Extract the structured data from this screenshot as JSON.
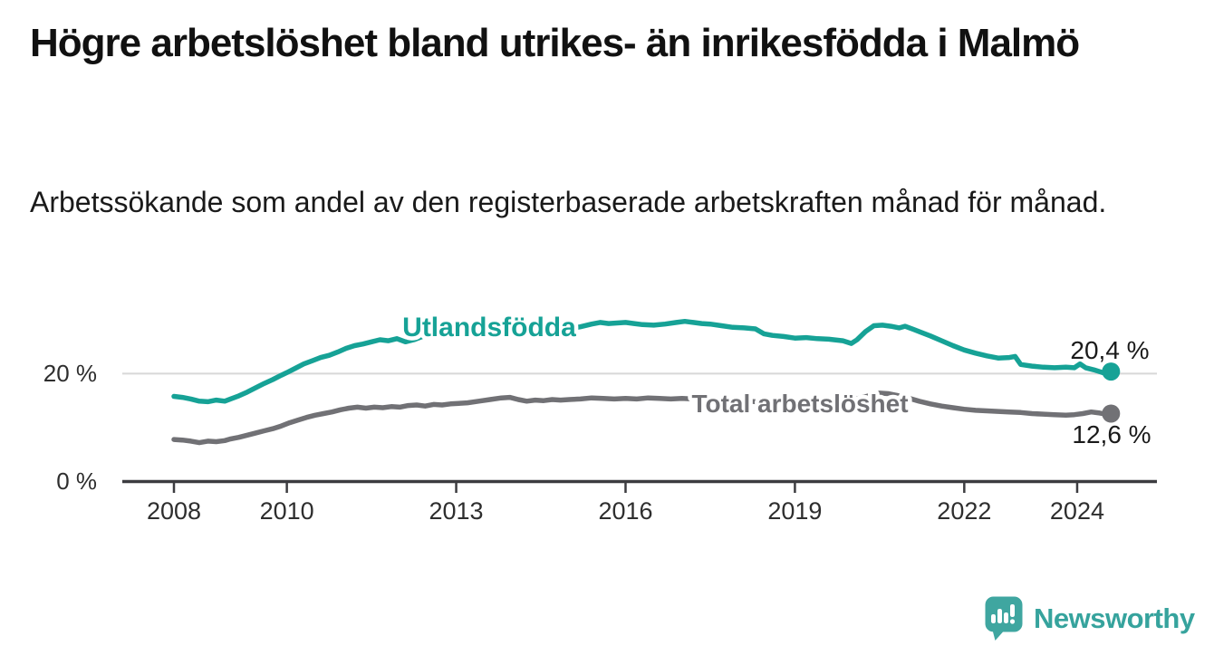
{
  "header": {
    "title": "Högre arbetslöshet bland utrikes- än inrikesfödda i Malmö",
    "subtitle": "Arbetssökande som andel av den registerbaserade arbetskraften månad för månad."
  },
  "chart_data": {
    "type": "line",
    "title": "Högre arbetslöshet bland utrikes- än inrikesfödda i Malmö",
    "xlabel": "",
    "ylabel": "",
    "unit": "%",
    "grid": "horizontal gridline at 20 % only",
    "legend_position": "inline labels on lines",
    "xlim": [
      2007.1,
      2025.4
    ],
    "ylim": [
      0,
      33.8
    ],
    "x_ticks": [
      2008,
      2010,
      2013,
      2016,
      2019,
      2022,
      2024
    ],
    "x_tick_labels": [
      "2008",
      "2010",
      "2013",
      "2016",
      "2019",
      "2022",
      "2024"
    ],
    "y_ticks": [
      {
        "value": 0,
        "label": "0 %"
      },
      {
        "value": 20,
        "label": "20 %"
      }
    ],
    "series": [
      {
        "name": "Utlandsfödda",
        "color": "#16a296",
        "end_value": 20.4,
        "end_label": "20,4 %",
        "points": [
          [
            2008.0,
            15.8
          ],
          [
            2008.15,
            15.6
          ],
          [
            2008.3,
            15.3
          ],
          [
            2008.45,
            14.9
          ],
          [
            2008.6,
            14.8
          ],
          [
            2008.75,
            15.1
          ],
          [
            2008.9,
            14.9
          ],
          [
            2009.0,
            15.3
          ],
          [
            2009.15,
            15.9
          ],
          [
            2009.3,
            16.6
          ],
          [
            2009.45,
            17.4
          ],
          [
            2009.6,
            18.2
          ],
          [
            2009.75,
            18.9
          ],
          [
            2009.9,
            19.7
          ],
          [
            2010.0,
            20.2
          ],
          [
            2010.15,
            21.0
          ],
          [
            2010.3,
            21.8
          ],
          [
            2010.45,
            22.4
          ],
          [
            2010.6,
            23.0
          ],
          [
            2010.75,
            23.4
          ],
          [
            2010.9,
            24.0
          ],
          [
            2011.05,
            24.7
          ],
          [
            2011.2,
            25.2
          ],
          [
            2011.35,
            25.5
          ],
          [
            2011.5,
            25.9
          ],
          [
            2011.65,
            26.3
          ],
          [
            2011.8,
            26.1
          ],
          [
            2011.95,
            26.5
          ],
          [
            2012.1,
            25.9
          ],
          [
            2012.25,
            26.3
          ],
          [
            2012.4,
            26.9
          ],
          [
            2012.55,
            27.2
          ],
          [
            2012.7,
            27.1
          ],
          [
            2012.85,
            26.8
          ],
          [
            2013.0,
            27.1
          ],
          [
            2013.2,
            27.3
          ],
          [
            2013.4,
            27.5
          ],
          [
            2013.6,
            27.7
          ],
          [
            2013.8,
            27.9
          ],
          [
            2014.0,
            28.0
          ],
          [
            2014.2,
            28.2
          ],
          [
            2014.4,
            28.5
          ],
          [
            2014.6,
            28.3
          ],
          [
            2014.8,
            28.4
          ],
          [
            2015.0,
            28.3
          ],
          [
            2015.2,
            28.7
          ],
          [
            2015.4,
            29.2
          ],
          [
            2015.55,
            29.5
          ],
          [
            2015.7,
            29.3
          ],
          [
            2015.85,
            29.4
          ],
          [
            2016.0,
            29.5
          ],
          [
            2016.15,
            29.3
          ],
          [
            2016.3,
            29.1
          ],
          [
            2016.5,
            29.0
          ],
          [
            2016.7,
            29.2
          ],
          [
            2016.9,
            29.5
          ],
          [
            2017.05,
            29.7
          ],
          [
            2017.2,
            29.5
          ],
          [
            2017.35,
            29.3
          ],
          [
            2017.5,
            29.2
          ],
          [
            2017.7,
            28.9
          ],
          [
            2017.9,
            28.6
          ],
          [
            2018.1,
            28.5
          ],
          [
            2018.3,
            28.3
          ],
          [
            2018.45,
            27.4
          ],
          [
            2018.6,
            27.1
          ],
          [
            2018.8,
            26.9
          ],
          [
            2019.0,
            26.6
          ],
          [
            2019.2,
            26.7
          ],
          [
            2019.4,
            26.5
          ],
          [
            2019.6,
            26.4
          ],
          [
            2019.85,
            26.1
          ],
          [
            2020.0,
            25.6
          ],
          [
            2020.1,
            26.3
          ],
          [
            2020.25,
            27.8
          ],
          [
            2020.4,
            28.9
          ],
          [
            2020.55,
            29.0
          ],
          [
            2020.7,
            28.8
          ],
          [
            2020.85,
            28.5
          ],
          [
            2020.95,
            28.8
          ],
          [
            2021.1,
            28.2
          ],
          [
            2021.25,
            27.6
          ],
          [
            2021.4,
            27.0
          ],
          [
            2021.6,
            26.1
          ],
          [
            2021.8,
            25.2
          ],
          [
            2022.0,
            24.4
          ],
          [
            2022.2,
            23.8
          ],
          [
            2022.4,
            23.3
          ],
          [
            2022.6,
            22.9
          ],
          [
            2022.8,
            23.0
          ],
          [
            2022.9,
            23.2
          ],
          [
            2023.0,
            21.7
          ],
          [
            2023.2,
            21.4
          ],
          [
            2023.4,
            21.2
          ],
          [
            2023.6,
            21.1
          ],
          [
            2023.8,
            21.2
          ],
          [
            2023.95,
            21.1
          ],
          [
            2024.05,
            21.8
          ],
          [
            2024.15,
            21.1
          ],
          [
            2024.3,
            20.7
          ],
          [
            2024.45,
            20.2
          ],
          [
            2024.55,
            20.0
          ],
          [
            2024.6,
            20.4
          ]
        ]
      },
      {
        "name": "Total arbetslöshet",
        "color": "#717175",
        "end_value": 12.6,
        "end_label": "12,6 %",
        "points": [
          [
            2008.0,
            7.8
          ],
          [
            2008.15,
            7.7
          ],
          [
            2008.3,
            7.5
          ],
          [
            2008.45,
            7.2
          ],
          [
            2008.6,
            7.5
          ],
          [
            2008.75,
            7.4
          ],
          [
            2008.9,
            7.6
          ],
          [
            2009.0,
            7.9
          ],
          [
            2009.15,
            8.2
          ],
          [
            2009.3,
            8.6
          ],
          [
            2009.45,
            9.0
          ],
          [
            2009.6,
            9.4
          ],
          [
            2009.75,
            9.8
          ],
          [
            2009.9,
            10.3
          ],
          [
            2010.05,
            10.9
          ],
          [
            2010.2,
            11.4
          ],
          [
            2010.35,
            11.9
          ],
          [
            2010.5,
            12.3
          ],
          [
            2010.65,
            12.6
          ],
          [
            2010.8,
            12.9
          ],
          [
            2010.95,
            13.3
          ],
          [
            2011.1,
            13.6
          ],
          [
            2011.25,
            13.8
          ],
          [
            2011.4,
            13.6
          ],
          [
            2011.55,
            13.8
          ],
          [
            2011.7,
            13.7
          ],
          [
            2011.85,
            13.9
          ],
          [
            2012.0,
            13.8
          ],
          [
            2012.15,
            14.1
          ],
          [
            2012.3,
            14.2
          ],
          [
            2012.45,
            14.0
          ],
          [
            2012.6,
            14.3
          ],
          [
            2012.75,
            14.2
          ],
          [
            2012.9,
            14.4
          ],
          [
            2013.05,
            14.5
          ],
          [
            2013.2,
            14.6
          ],
          [
            2013.4,
            14.9
          ],
          [
            2013.6,
            15.2
          ],
          [
            2013.8,
            15.5
          ],
          [
            2013.95,
            15.6
          ],
          [
            2014.1,
            15.2
          ],
          [
            2014.25,
            14.9
          ],
          [
            2014.4,
            15.1
          ],
          [
            2014.55,
            15.0
          ],
          [
            2014.7,
            15.2
          ],
          [
            2014.85,
            15.1
          ],
          [
            2015.0,
            15.2
          ],
          [
            2015.2,
            15.3
          ],
          [
            2015.4,
            15.5
          ],
          [
            2015.6,
            15.4
          ],
          [
            2015.8,
            15.3
          ],
          [
            2016.0,
            15.4
          ],
          [
            2016.2,
            15.3
          ],
          [
            2016.4,
            15.5
          ],
          [
            2016.6,
            15.4
          ],
          [
            2016.8,
            15.3
          ],
          [
            2017.0,
            15.4
          ],
          [
            2017.2,
            15.3
          ],
          [
            2017.4,
            15.2
          ],
          [
            2017.6,
            15.2
          ],
          [
            2017.8,
            15.1
          ],
          [
            2018.0,
            15.0
          ],
          [
            2018.2,
            14.9
          ],
          [
            2018.4,
            14.7
          ],
          [
            2018.6,
            14.5
          ],
          [
            2018.8,
            14.4
          ],
          [
            2019.0,
            14.3
          ],
          [
            2019.2,
            14.4
          ],
          [
            2019.4,
            14.5
          ],
          [
            2019.6,
            14.7
          ],
          [
            2019.8,
            14.9
          ],
          [
            2020.0,
            15.1
          ],
          [
            2020.2,
            15.6
          ],
          [
            2020.35,
            16.0
          ],
          [
            2020.5,
            16.4
          ],
          [
            2020.65,
            16.3
          ],
          [
            2020.8,
            16.0
          ],
          [
            2021.0,
            15.5
          ],
          [
            2021.2,
            14.9
          ],
          [
            2021.4,
            14.4
          ],
          [
            2021.6,
            14.0
          ],
          [
            2021.8,
            13.7
          ],
          [
            2022.0,
            13.4
          ],
          [
            2022.2,
            13.2
          ],
          [
            2022.4,
            13.1
          ],
          [
            2022.6,
            13.0
          ],
          [
            2022.8,
            12.9
          ],
          [
            2023.0,
            12.8
          ],
          [
            2023.2,
            12.6
          ],
          [
            2023.4,
            12.5
          ],
          [
            2023.6,
            12.4
          ],
          [
            2023.8,
            12.3
          ],
          [
            2023.95,
            12.4
          ],
          [
            2024.1,
            12.6
          ],
          [
            2024.25,
            12.9
          ],
          [
            2024.4,
            12.7
          ],
          [
            2024.5,
            12.5
          ],
          [
            2024.6,
            12.6
          ]
        ]
      }
    ]
  },
  "footer": {
    "brand": "Newsworthy",
    "brand_color": "#36a39d",
    "logo_icon": "speech-bubble-bar-chart-icon"
  }
}
